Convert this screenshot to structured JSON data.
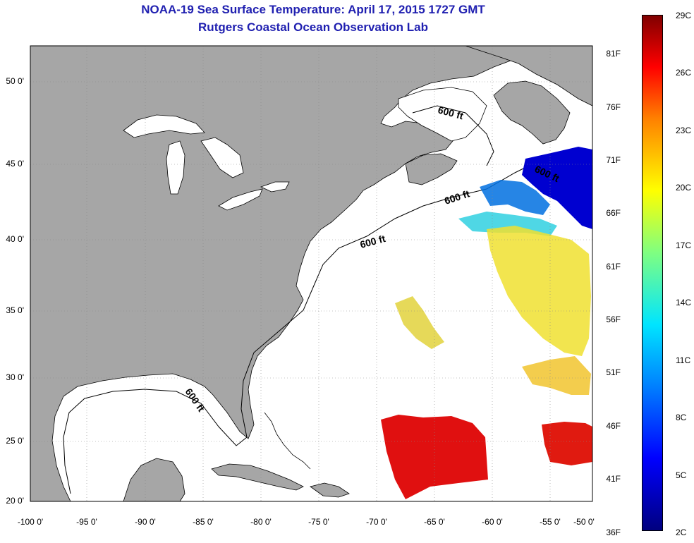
{
  "header": {
    "title": "NOAA-19 Sea Surface Temperature:  April 17, 2015 1727 GMT",
    "subtitle": "Rutgers Coastal Ocean Observation Lab"
  },
  "map": {
    "lat_labels": [
      "50 0'",
      "45 0'",
      "40 0'",
      "35 0'",
      "30 0'",
      "25 0'",
      "20 0'"
    ],
    "lon_labels": [
      "-100 0'",
      "-95 0'",
      "-90 0'",
      "-85 0'",
      "-80 0'",
      "-75 0'",
      "-70 0'",
      "-65 0'",
      "-60 0'",
      "-55 0'",
      "-50 0'"
    ],
    "contour_labels": [
      "600 ft",
      "600 ft",
      "600 ft",
      "600 ft",
      "600 ft",
      "600 ft"
    ],
    "colors": {
      "land": "#a6a6a6",
      "ocean": "#ffffff",
      "grid": "#888888"
    }
  },
  "colorbar": {
    "f_labels": [
      "81F",
      "76F",
      "71F",
      "66F",
      "61F",
      "56F",
      "51F",
      "46F",
      "41F",
      "36F"
    ],
    "c_labels": [
      "29C",
      "26C",
      "23C",
      "20C",
      "17C",
      "14C",
      "11C",
      "8C",
      "5C",
      "2C"
    ]
  }
}
